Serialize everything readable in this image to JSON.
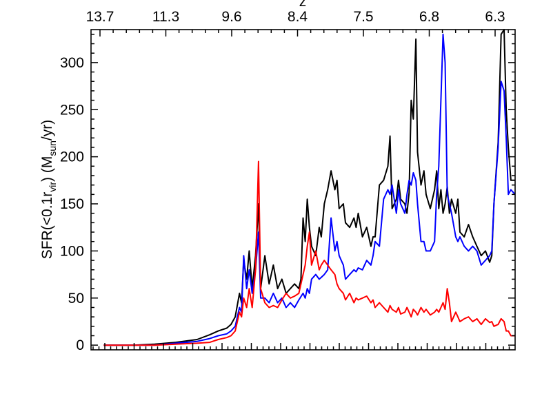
{
  "chart_data": {
    "type": "line",
    "title": "",
    "ylabel": {
      "main": "SFR(<0.1r",
      "sub1": "vir",
      "mid": ") (M",
      "sub2": "sun",
      "end": "/yr)"
    },
    "top_axis_label": "z",
    "top_ticks": [
      "13.7",
      "11.3",
      "9.6",
      "8.4",
      "7.5",
      "6.8",
      "6.3"
    ],
    "y_ticks": [
      "0",
      "50",
      "100",
      "150",
      "200",
      "250",
      "300"
    ],
    "y_tick_values": [
      0,
      50,
      100,
      150,
      200,
      250,
      300
    ],
    "ylim": [
      -5,
      335
    ],
    "xlim": [
      0,
      100
    ],
    "grid": false,
    "legend": "none",
    "series": [
      {
        "color": "#000000",
        "points": [
          [
            3,
            0
          ],
          [
            10,
            0
          ],
          [
            15,
            1
          ],
          [
            20,
            3
          ],
          [
            25,
            6
          ],
          [
            28,
            11
          ],
          [
            30,
            15
          ],
          [
            32,
            18
          ],
          [
            33,
            22
          ],
          [
            34,
            30
          ],
          [
            35,
            55
          ],
          [
            35.5,
            45
          ],
          [
            36,
            90
          ],
          [
            36.7,
            70
          ],
          [
            37.3,
            100
          ],
          [
            38,
            60
          ],
          [
            38.8,
            95
          ],
          [
            39.5,
            150
          ],
          [
            40,
            60
          ],
          [
            41,
            95
          ],
          [
            42,
            65
          ],
          [
            43,
            85
          ],
          [
            44,
            60
          ],
          [
            45,
            70
          ],
          [
            46,
            55
          ],
          [
            47,
            60
          ],
          [
            48,
            65
          ],
          [
            49,
            60
          ],
          [
            49.5,
            70
          ],
          [
            50,
            135
          ],
          [
            50.5,
            110
          ],
          [
            51,
            155
          ],
          [
            51.5,
            125
          ],
          [
            52,
            105
          ],
          [
            53,
            95
          ],
          [
            53.8,
            125
          ],
          [
            54.3,
            115
          ],
          [
            55,
            150
          ],
          [
            55.8,
            165
          ],
          [
            56.6,
            185
          ],
          [
            57.5,
            165
          ],
          [
            58,
            175
          ],
          [
            58.5,
            145
          ],
          [
            59.5,
            150
          ],
          [
            60,
            130
          ],
          [
            61,
            125
          ],
          [
            62,
            135
          ],
          [
            62.5,
            125
          ],
          [
            63,
            140
          ],
          [
            64,
            115
          ],
          [
            65,
            125
          ],
          [
            66,
            105
          ],
          [
            66.5,
            115
          ],
          [
            67,
            115
          ],
          [
            68,
            170
          ],
          [
            69,
            175
          ],
          [
            70,
            190
          ],
          [
            70.5,
            222
          ],
          [
            71,
            145
          ],
          [
            72,
            155
          ],
          [
            72.5,
            175
          ],
          [
            73,
            155
          ],
          [
            74,
            150
          ],
          [
            74.5,
            140
          ],
          [
            75,
            162
          ],
          [
            75.5,
            260
          ],
          [
            76,
            240
          ],
          [
            76.6,
            325
          ],
          [
            77,
            205
          ],
          [
            77.8,
            170
          ],
          [
            78.5,
            185
          ],
          [
            79,
            160
          ],
          [
            80,
            145
          ],
          [
            81,
            165
          ],
          [
            81.5,
            185
          ],
          [
            82,
            145
          ],
          [
            82.5,
            165
          ],
          [
            83,
            140
          ],
          [
            83.5,
            150
          ],
          [
            84,
            168
          ],
          [
            84.5,
            140
          ],
          [
            85,
            155
          ],
          [
            86,
            140
          ],
          [
            86.5,
            155
          ],
          [
            87,
            120
          ],
          [
            88,
            115
          ],
          [
            89,
            128
          ],
          [
            90,
            115
          ],
          [
            91,
            105
          ],
          [
            92,
            95
          ],
          [
            93,
            100
          ],
          [
            94,
            88
          ],
          [
            94.5,
            95
          ],
          [
            95,
            150
          ],
          [
            96,
            215
          ],
          [
            96.7,
            330
          ],
          [
            97.4,
            340
          ],
          [
            97.9,
            250
          ],
          [
            98.4,
            210
          ],
          [
            99,
            175
          ],
          [
            100,
            175
          ]
        ]
      },
      {
        "color": "#0000ff",
        "points": [
          [
            3,
            0
          ],
          [
            10,
            0
          ],
          [
            15,
            0
          ],
          [
            20,
            2
          ],
          [
            25,
            4
          ],
          [
            28,
            7
          ],
          [
            30,
            10
          ],
          [
            32,
            12
          ],
          [
            33,
            15
          ],
          [
            34,
            20
          ],
          [
            35,
            40
          ],
          [
            35.5,
            35
          ],
          [
            36,
            95
          ],
          [
            36.7,
            60
          ],
          [
            37.3,
            80
          ],
          [
            38,
            55
          ],
          [
            38.8,
            80
          ],
          [
            39.5,
            120
          ],
          [
            40,
            50
          ],
          [
            41,
            50
          ],
          [
            42,
            45
          ],
          [
            43,
            55
          ],
          [
            44,
            45
          ],
          [
            45,
            50
          ],
          [
            46,
            40
          ],
          [
            47,
            45
          ],
          [
            48,
            40
          ],
          [
            49,
            48
          ],
          [
            50,
            55
          ],
          [
            50.5,
            50
          ],
          [
            51,
            60
          ],
          [
            51.5,
            55
          ],
          [
            52,
            70
          ],
          [
            53,
            75
          ],
          [
            53.8,
            70
          ],
          [
            54.3,
            72
          ],
          [
            55,
            75
          ],
          [
            55.8,
            80
          ],
          [
            56.6,
            135
          ],
          [
            57.5,
            100
          ],
          [
            58,
            110
          ],
          [
            58.5,
            95
          ],
          [
            59.5,
            85
          ],
          [
            60,
            70
          ],
          [
            61,
            75
          ],
          [
            62,
            80
          ],
          [
            62.5,
            78
          ],
          [
            63,
            82
          ],
          [
            64,
            80
          ],
          [
            65,
            90
          ],
          [
            66,
            85
          ],
          [
            66.5,
            95
          ],
          [
            67,
            110
          ],
          [
            68,
            105
          ],
          [
            69,
            155
          ],
          [
            70,
            165
          ],
          [
            70.5,
            160
          ],
          [
            71,
            170
          ],
          [
            72,
            140
          ],
          [
            72.5,
            165
          ],
          [
            73,
            150
          ],
          [
            74,
            140
          ],
          [
            74.5,
            160
          ],
          [
            75,
            175
          ],
          [
            75.5,
            170
          ],
          [
            76,
            183
          ],
          [
            76.6,
            175
          ],
          [
            77,
            150
          ],
          [
            77.8,
            110
          ],
          [
            78.5,
            110
          ],
          [
            79,
            100
          ],
          [
            80,
            100
          ],
          [
            81,
            110
          ],
          [
            81.5,
            160
          ],
          [
            82,
            190
          ],
          [
            82.5,
            260
          ],
          [
            83,
            330
          ],
          [
            83.5,
            300
          ],
          [
            84,
            160
          ],
          [
            84.5,
            150
          ],
          [
            85,
            140
          ],
          [
            86,
            115
          ],
          [
            86.5,
            110
          ],
          [
            87,
            115
          ],
          [
            88,
            105
          ],
          [
            89,
            100
          ],
          [
            90,
            105
          ],
          [
            91,
            100
          ],
          [
            92,
            85
          ],
          [
            93,
            90
          ],
          [
            94,
            95
          ],
          [
            94.5,
            100
          ],
          [
            95,
            150
          ],
          [
            96,
            210
          ],
          [
            96.7,
            280
          ],
          [
            97.4,
            270
          ],
          [
            97.9,
            220
          ],
          [
            98.4,
            160
          ],
          [
            99,
            165
          ],
          [
            100,
            160
          ]
        ]
      },
      {
        "color": "#ff0000",
        "points": [
          [
            3,
            0
          ],
          [
            10,
            0
          ],
          [
            15,
            0
          ],
          [
            20,
            1
          ],
          [
            25,
            2
          ],
          [
            28,
            3
          ],
          [
            30,
            6
          ],
          [
            32,
            8
          ],
          [
            33,
            10
          ],
          [
            34,
            15
          ],
          [
            35,
            35
          ],
          [
            35.5,
            30
          ],
          [
            36,
            50
          ],
          [
            36.7,
            40
          ],
          [
            37.3,
            60
          ],
          [
            38,
            40
          ],
          [
            38.8,
            80
          ],
          [
            39.5,
            195
          ],
          [
            40,
            60
          ],
          [
            41,
            45
          ],
          [
            42,
            40
          ],
          [
            43,
            42
          ],
          [
            44,
            40
          ],
          [
            45,
            48
          ],
          [
            46,
            55
          ],
          [
            47,
            50
          ],
          [
            48,
            52
          ],
          [
            49,
            55
          ],
          [
            50,
            75
          ],
          [
            50.5,
            85
          ],
          [
            51,
            105
          ],
          [
            51.5,
            120
          ],
          [
            52,
            85
          ],
          [
            53,
            100
          ],
          [
            53.8,
            80
          ],
          [
            54.3,
            85
          ],
          [
            55,
            90
          ],
          [
            55.8,
            85
          ],
          [
            56.6,
            80
          ],
          [
            57.5,
            75
          ],
          [
            58,
            65
          ],
          [
            58.5,
            60
          ],
          [
            59.5,
            55
          ],
          [
            60,
            48
          ],
          [
            61,
            55
          ],
          [
            62,
            45
          ],
          [
            62.5,
            50
          ],
          [
            63,
            48
          ],
          [
            64,
            50
          ],
          [
            65,
            52
          ],
          [
            66,
            45
          ],
          [
            66.5,
            48
          ],
          [
            67,
            40
          ],
          [
            68,
            45
          ],
          [
            69,
            40
          ],
          [
            70,
            35
          ],
          [
            70.5,
            42
          ],
          [
            71,
            38
          ],
          [
            72,
            35
          ],
          [
            72.5,
            40
          ],
          [
            73,
            33
          ],
          [
            74,
            35
          ],
          [
            74.5,
            40
          ],
          [
            75,
            35
          ],
          [
            75.5,
            30
          ],
          [
            76,
            38
          ],
          [
            76.6,
            35
          ],
          [
            77,
            32
          ],
          [
            77.8,
            40
          ],
          [
            78.5,
            35
          ],
          [
            79,
            38
          ],
          [
            80,
            32
          ],
          [
            81,
            35
          ],
          [
            81.5,
            38
          ],
          [
            82,
            35
          ],
          [
            82.5,
            40
          ],
          [
            83,
            45
          ],
          [
            83.5,
            38
          ],
          [
            84,
            60
          ],
          [
            84.5,
            45
          ],
          [
            85,
            25
          ],
          [
            86,
            35
          ],
          [
            86.5,
            30
          ],
          [
            87,
            25
          ],
          [
            88,
            28
          ],
          [
            89,
            30
          ],
          [
            90,
            25
          ],
          [
            91,
            28
          ],
          [
            92,
            22
          ],
          [
            93,
            28
          ],
          [
            94,
            24
          ],
          [
            94.5,
            25
          ],
          [
            95,
            20
          ],
          [
            96,
            22
          ],
          [
            96.7,
            28
          ],
          [
            97.4,
            25
          ],
          [
            97.9,
            15
          ],
          [
            98.4,
            15
          ],
          [
            99,
            10
          ],
          [
            100,
            10
          ]
        ]
      }
    ]
  }
}
